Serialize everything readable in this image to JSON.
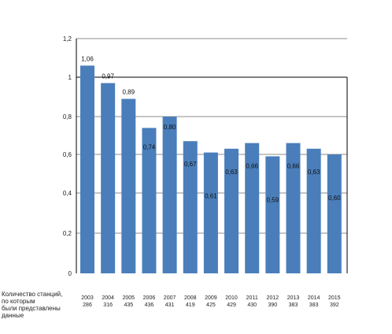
{
  "chart_data": {
    "type": "bar",
    "categories": [
      "2003",
      "2004",
      "2005",
      "2006",
      "2007",
      "2008",
      "2009",
      "2010",
      "2011",
      "2012",
      "2013",
      "2014",
      "2015"
    ],
    "values": [
      1.06,
      0.97,
      0.89,
      0.74,
      0.8,
      0.67,
      0.61,
      0.63,
      0.66,
      0.59,
      0.66,
      0.63,
      0.6
    ],
    "value_labels": [
      "1,06",
      "0,97",
      "0,89",
      "0,74",
      "0,80",
      "0,67",
      "0,61",
      "0,63",
      "0,66",
      "0,59",
      "0,66",
      "0,63",
      "0,60"
    ],
    "station_counts": [
      "286",
      "316",
      "435",
      "436",
      "431",
      "419",
      "425",
      "429",
      "430",
      "390",
      "383",
      "383",
      "392"
    ],
    "row_caption": "Количество станций,\nпо которым\nбыли представлены\nданные",
    "ytick_values": [
      0,
      0.2,
      0.4,
      0.6,
      0.8,
      1,
      1.2
    ],
    "ytick_labels": [
      "0",
      "0,2",
      "0,4",
      "0,6",
      "0,8",
      "1",
      "1,2"
    ],
    "ylim": [
      0,
      1.2
    ],
    "grid": true,
    "bar_color": "#4a7ebb",
    "grid_color": "#8c8c8c"
  }
}
